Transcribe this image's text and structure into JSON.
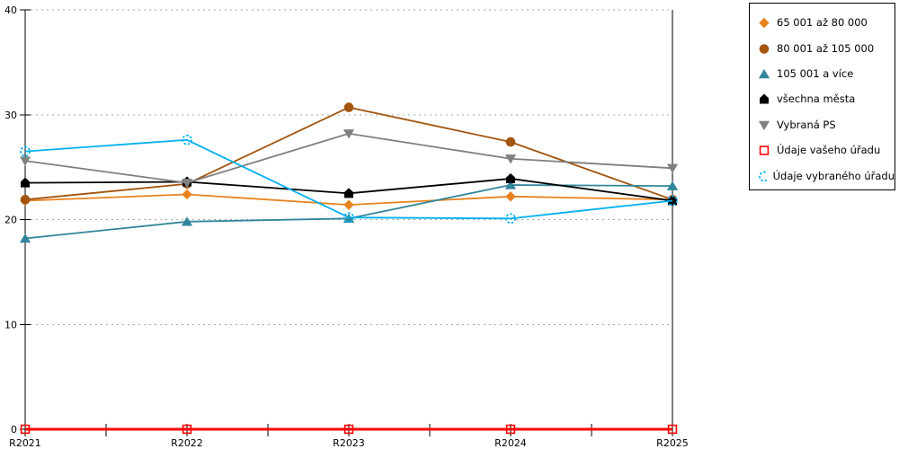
{
  "chart_data": {
    "type": "line",
    "title": "",
    "xlabel": "",
    "ylabel": "",
    "categories": [
      "R2021",
      "R2022",
      "R2023",
      "R2024",
      "R2025"
    ],
    "yticks": [
      0,
      10,
      20,
      30,
      40
    ],
    "ylim": [
      0,
      40
    ],
    "grid": "horizontal-dashed",
    "legend_position": "right",
    "series": [
      {
        "name": "65 001 až 80 000",
        "marker": "diamond",
        "color": "#E8821E",
        "line_width": 1.8,
        "values": [
          21.8,
          22.4,
          21.4,
          22.2,
          21.9
        ]
      },
      {
        "name": "80 001 až 105 000",
        "marker": "circle",
        "color": "#A3540E",
        "line_width": 1.8,
        "values": [
          21.9,
          23.4,
          30.7,
          27.4,
          21.9
        ]
      },
      {
        "name": "105 001 a více",
        "marker": "triangle-up",
        "color": "#31859C",
        "line_width": 1.8,
        "values": [
          18.2,
          19.8,
          20.1,
          23.3,
          23.2
        ]
      },
      {
        "name": "všechna města",
        "marker": "house",
        "color": "#000000",
        "line_width": 1.8,
        "values": [
          23.5,
          23.6,
          22.5,
          23.9,
          21.8
        ]
      },
      {
        "name": "Vybraná PS",
        "marker": "triangle-down",
        "color": "#7F7F7F",
        "line_width": 1.8,
        "values": [
          25.6,
          23.5,
          28.2,
          25.8,
          24.9
        ]
      },
      {
        "name": "Údaje vašeho úřadu",
        "marker": "square-open",
        "color": "#FF0000",
        "line_width": 3,
        "values": [
          0,
          0,
          0,
          0,
          0
        ]
      },
      {
        "name": "Údaje vybraného úřadu",
        "marker": "circle-open-dashed",
        "color": "#00B0F0",
        "line_width": 1.8,
        "values": [
          26.5,
          27.6,
          20.2,
          20.1,
          21.8
        ]
      }
    ],
    "colors": {
      "axis": "#000000",
      "gridline": "#A6A6A6",
      "background": "#FFFFFF"
    }
  }
}
